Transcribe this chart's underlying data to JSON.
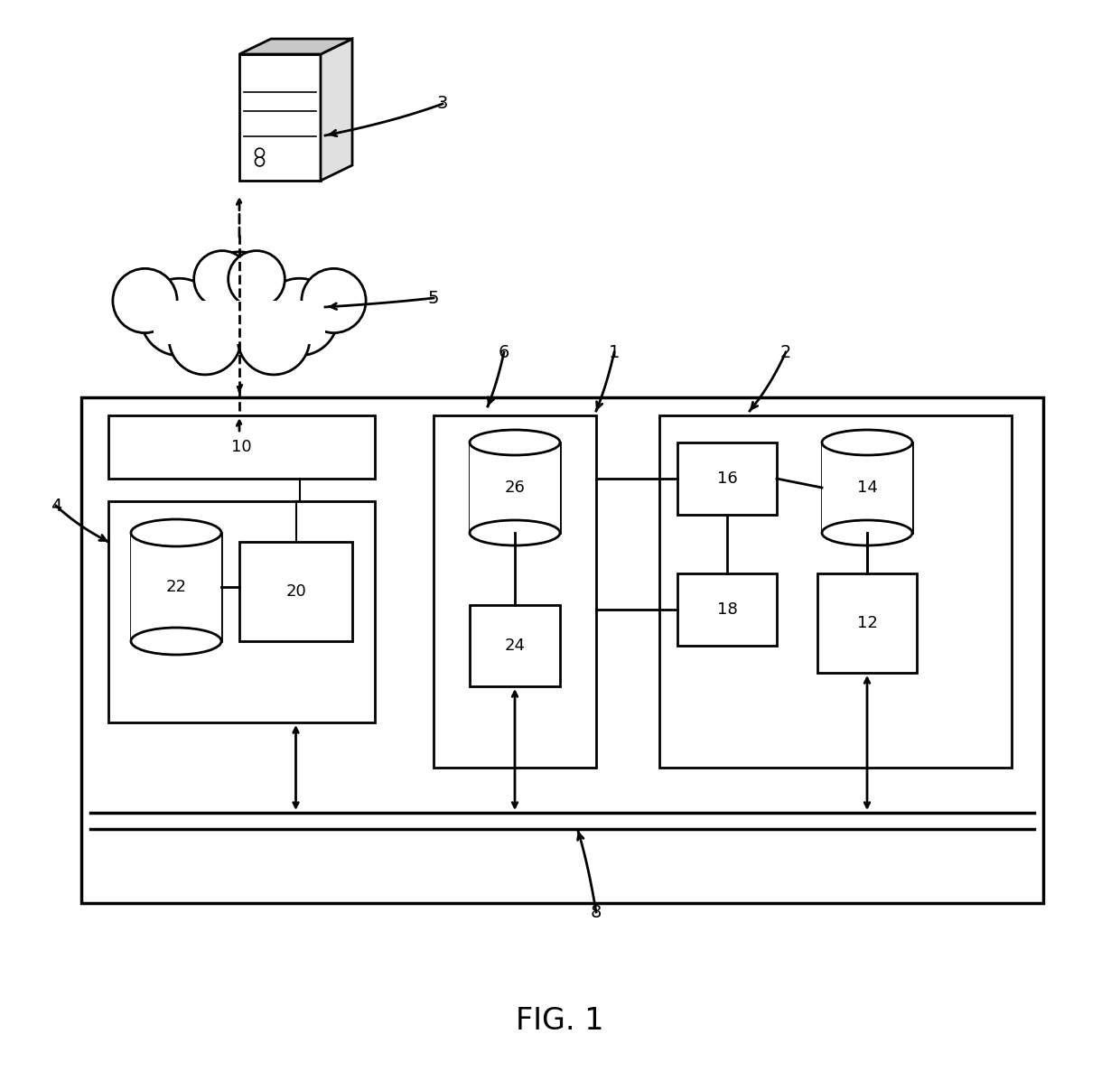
{
  "fig_label": "FIG. 1",
  "background_color": "#ffffff",
  "line_color": "#000000",
  "font_size_labels": 13,
  "font_size_fig": 24
}
